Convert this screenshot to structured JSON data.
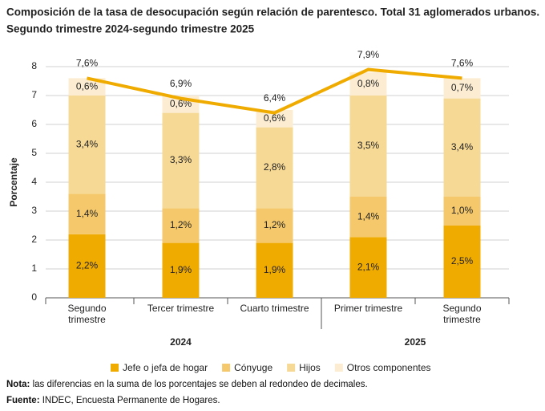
{
  "chart_data": {
    "type": "stacked-bar-line",
    "title": "Composición de la tasa de desocupación según relación de parentesco. Total 31 aglomerados urbanos.",
    "subtitle": "Segundo trimestre 2024-segundo trimestre 2025",
    "y_label": "Porcentaje",
    "categories": [
      "Segundo trimestre",
      "Tercer trimestre",
      "Cuarto trimestre",
      "Primer trimestre",
      "Segundo trimestre"
    ],
    "groups": [
      {
        "label": "2024",
        "size": 3
      },
      {
        "label": "2025",
        "size": 2
      }
    ],
    "series": [
      {
        "name": "Jefe o jefa de hogar",
        "color": "#f0ab00",
        "values": [
          2.2,
          1.9,
          1.9,
          2.1,
          2.5
        ],
        "value_labels": [
          "2,2%",
          "1,9%",
          "1,9%",
          "2,1%",
          "2,5%"
        ]
      },
      {
        "name": "Cónyuge",
        "color": "#f5c96b",
        "values": [
          1.4,
          1.2,
          1.2,
          1.4,
          1.0
        ],
        "value_labels": [
          "1,4%",
          "1,2%",
          "1,2%",
          "1,4%",
          "1,0%"
        ]
      },
      {
        "name": "Hijos",
        "color": "#f7d996",
        "values": [
          3.4,
          3.3,
          2.8,
          3.5,
          3.4
        ],
        "value_labels": [
          "3,4%",
          "3,3%",
          "2,8%",
          "3,5%",
          "3,4%"
        ]
      },
      {
        "name": "Otros componentes",
        "color": "#fcedd2",
        "values": [
          0.6,
          0.6,
          0.6,
          0.8,
          0.7
        ],
        "value_labels": [
          "0,6%",
          "0,6%",
          "0,6%",
          "0,8%",
          "0,7%"
        ]
      }
    ],
    "total": {
      "color": "#f0ab00",
      "values": [
        7.6,
        6.9,
        6.4,
        7.9,
        7.6
      ],
      "value_labels": [
        "7,6%",
        "6,9%",
        "6,4%",
        "7,9%",
        "7,6%"
      ]
    },
    "ylim": [
      0,
      8
    ],
    "yticks": [
      0,
      1,
      2,
      3,
      4,
      5,
      6,
      7,
      8
    ],
    "grid": true,
    "notes": [
      {
        "label": "Nota:",
        "text": "las diferencias en la suma de los porcentajes se deben al redondeo de decimales."
      },
      {
        "label": "Fuente:",
        "text": "INDEC, Encuesta Permanente de Hogares."
      }
    ]
  }
}
